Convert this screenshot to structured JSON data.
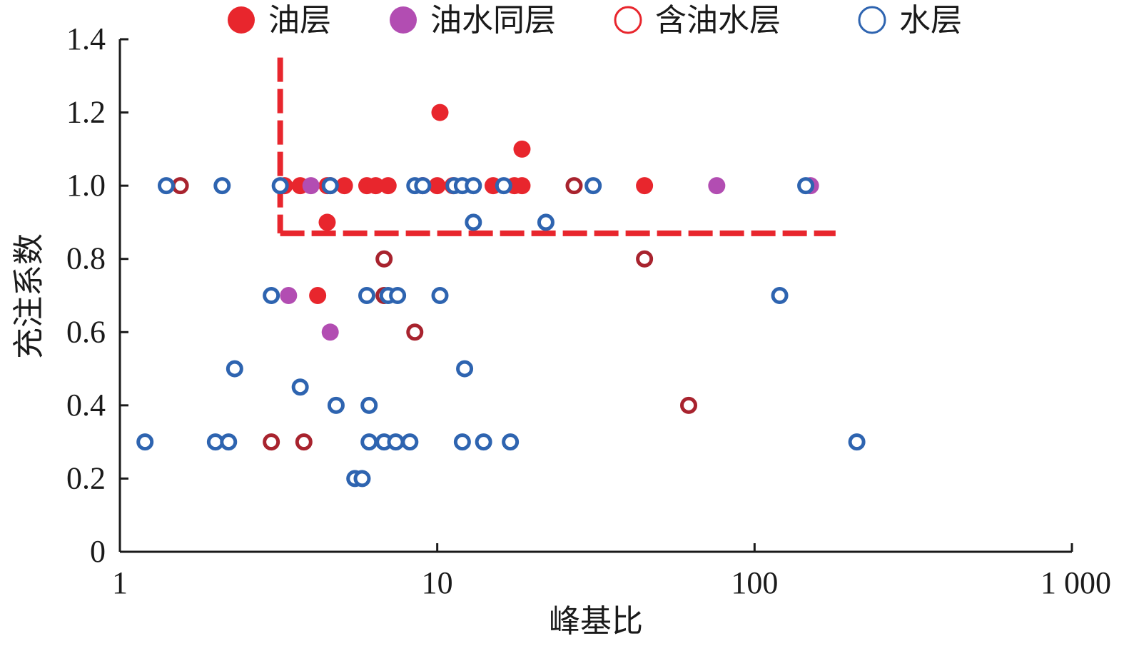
{
  "chart_data": {
    "type": "scatter",
    "xlabel": "峰基比",
    "ylabel": "充注系数",
    "x_scale": "log",
    "xlim": [
      1,
      1000
    ],
    "ylim": [
      0,
      1.4
    ],
    "x_ticks": [
      1,
      10,
      100,
      1000
    ],
    "x_tick_labels": [
      "1",
      "10",
      "100",
      "1 000"
    ],
    "y_ticks": [
      0,
      0.2,
      0.4,
      0.6,
      0.8,
      1.0,
      1.2,
      1.4
    ],
    "y_tick_labels": [
      "0",
      "0.2",
      "0.4",
      "0.6",
      "0.8",
      "1.0",
      "1.2",
      "1.4"
    ],
    "grid": false,
    "legend_position": "top",
    "cutoff_lines": {
      "color": "#e8262d",
      "x_cutoff": 3.2,
      "y_cutoff": 0.87,
      "x_line_y_range": [
        0.87,
        1.35
      ],
      "y_line_x_range": [
        3.2,
        180
      ]
    },
    "series": [
      {
        "name": "油层",
        "marker": "filled",
        "color": "#e8262d",
        "points": [
          [
            3.3,
            1.0
          ],
          [
            3.7,
            1.0
          ],
          [
            4.5,
            1.0
          ],
          [
            5.1,
            1.0
          ],
          [
            6.0,
            1.0
          ],
          [
            6.4,
            1.0
          ],
          [
            7.0,
            1.0
          ],
          [
            9.0,
            1.0
          ],
          [
            10.0,
            1.0
          ],
          [
            11.2,
            1.0
          ],
          [
            15.0,
            1.0
          ],
          [
            17.5,
            1.0
          ],
          [
            18.5,
            1.0
          ],
          [
            45,
            1.0
          ],
          [
            10.2,
            1.2
          ],
          [
            18.5,
            1.1
          ],
          [
            4.5,
            0.9
          ],
          [
            4.2,
            0.7
          ]
        ]
      },
      {
        "name": "油水同层",
        "marker": "filled",
        "color": "#b24db2",
        "points": [
          [
            4.0,
            1.0
          ],
          [
            9.0,
            1.0
          ],
          [
            76,
            1.0
          ],
          [
            150,
            1.0
          ],
          [
            3.4,
            0.7
          ],
          [
            4.6,
            0.6
          ]
        ]
      },
      {
        "name": "含油水层",
        "marker": "ring",
        "color": "#a8232e",
        "legend_color": "#e8262d",
        "points": [
          [
            1.55,
            1.0
          ],
          [
            4.6,
            1.0
          ],
          [
            27,
            1.0
          ],
          [
            6.8,
            0.8
          ],
          [
            45,
            0.8
          ],
          [
            6.8,
            0.7
          ],
          [
            8.5,
            0.6
          ],
          [
            62,
            0.4
          ],
          [
            3.0,
            0.3
          ],
          [
            3.8,
            0.3
          ]
        ]
      },
      {
        "name": "水层",
        "marker": "ring",
        "color": "#2e64b0",
        "points": [
          [
            1.4,
            1.0
          ],
          [
            2.1,
            1.0
          ],
          [
            3.2,
            1.0
          ],
          [
            4.6,
            1.0
          ],
          [
            8.5,
            1.0
          ],
          [
            9.0,
            1.0
          ],
          [
            11.3,
            1.0
          ],
          [
            12.0,
            1.0
          ],
          [
            13.0,
            1.0
          ],
          [
            16.2,
            1.0
          ],
          [
            31,
            1.0
          ],
          [
            145,
            1.0
          ],
          [
            13.0,
            0.9
          ],
          [
            22,
            0.9
          ],
          [
            3.0,
            0.7
          ],
          [
            6.0,
            0.7
          ],
          [
            7.0,
            0.7
          ],
          [
            7.5,
            0.7
          ],
          [
            10.2,
            0.7
          ],
          [
            120,
            0.7
          ],
          [
            2.3,
            0.5
          ],
          [
            12.2,
            0.5
          ],
          [
            3.7,
            0.45
          ],
          [
            4.8,
            0.4
          ],
          [
            6.1,
            0.4
          ],
          [
            1.2,
            0.3
          ],
          [
            2.0,
            0.3
          ],
          [
            2.2,
            0.3
          ],
          [
            6.1,
            0.3
          ],
          [
            6.8,
            0.3
          ],
          [
            7.4,
            0.3
          ],
          [
            8.2,
            0.3
          ],
          [
            12.0,
            0.3
          ],
          [
            14.0,
            0.3
          ],
          [
            17.0,
            0.3
          ],
          [
            210,
            0.3
          ],
          [
            5.5,
            0.2
          ],
          [
            5.8,
            0.2
          ]
        ]
      }
    ]
  }
}
